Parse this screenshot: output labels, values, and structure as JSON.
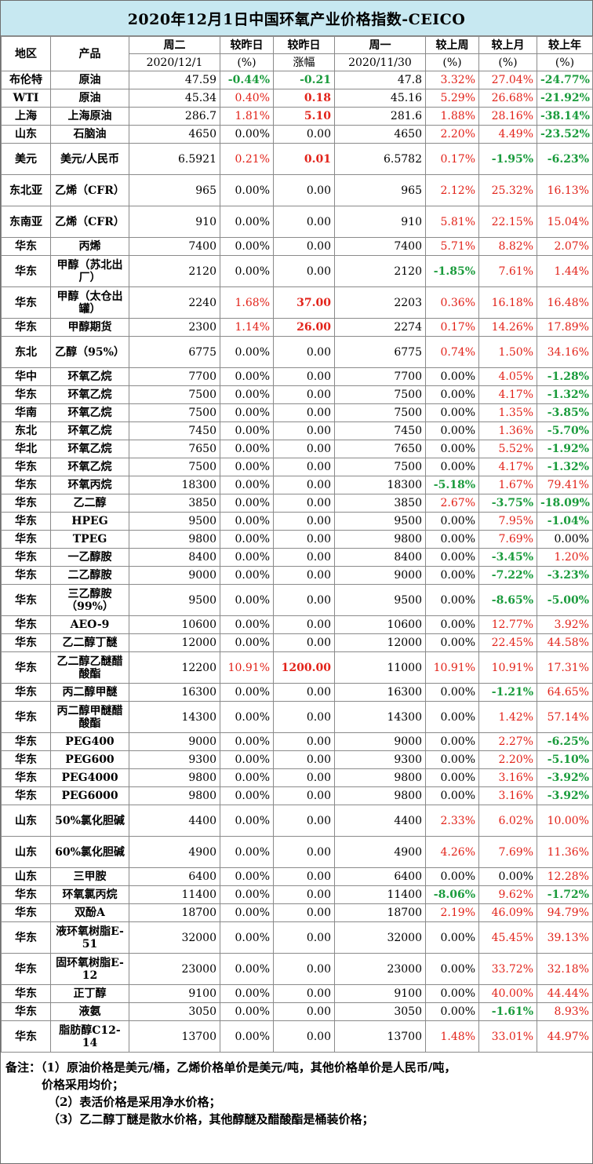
{
  "title": "2020年12月1日中国环氧产业价格指数-CEICO",
  "header": {
    "row1": [
      "地区",
      "产品",
      "周二",
      "较昨日",
      "较昨日",
      "周一",
      "较上周",
      "较上月",
      "较上年"
    ],
    "row2": [
      "2020/12/1",
      "(%)",
      "涨幅",
      "2020/11/30",
      "(%)",
      "(%)",
      "(%)"
    ]
  },
  "rows": [
    {
      "region": "布伦特",
      "product": "原油",
      "tue": "47.59",
      "dpct": "-0.44%",
      "dabs": "-0.21",
      "mon": "47.8",
      "week": "3.32%",
      "month": "27.04%",
      "year": "-24.77%"
    },
    {
      "region": "WTI",
      "product": "原油",
      "tue": "45.34",
      "dpct": "0.40%",
      "dabs": "0.18",
      "mon": "45.16",
      "week": "5.29%",
      "month": "26.68%",
      "year": "-21.92%"
    },
    {
      "region": "上海",
      "product": "上海原油",
      "tue": "286.7",
      "dpct": "1.81%",
      "dabs": "5.10",
      "mon": "281.6",
      "week": "1.88%",
      "month": "28.16%",
      "year": "-38.14%"
    },
    {
      "region": "山东",
      "product": "石脑油",
      "tue": "4650",
      "dpct": "0.00%",
      "dabs": "0.00",
      "mon": "4650",
      "week": "2.20%",
      "month": "4.49%",
      "year": "-23.52%"
    },
    {
      "region": "美元",
      "product": "美元/人民币",
      "tue": "6.5921",
      "dpct": "0.21%",
      "dabs": "0.01",
      "mon": "6.5782",
      "week": "0.17%",
      "month": "-1.95%",
      "year": "-6.23%",
      "tall": true
    },
    {
      "region": "东北亚",
      "product": "乙烯（CFR）",
      "tue": "965",
      "dpct": "0.00%",
      "dabs": "0.00",
      "mon": "965",
      "week": "2.12%",
      "month": "25.32%",
      "year": "16.13%",
      "tall": true
    },
    {
      "region": "东南亚",
      "product": "乙烯（CFR）",
      "tue": "910",
      "dpct": "0.00%",
      "dabs": "0.00",
      "mon": "910",
      "week": "5.81%",
      "month": "22.15%",
      "year": "15.04%",
      "tall": true
    },
    {
      "region": "华东",
      "product": "丙烯",
      "tue": "7400",
      "dpct": "0.00%",
      "dabs": "0.00",
      "mon": "7400",
      "week": "5.71%",
      "month": "8.82%",
      "year": "2.07%"
    },
    {
      "region": "华东",
      "product": "甲醇（苏北出厂）",
      "tue": "2120",
      "dpct": "0.00%",
      "dabs": "0.00",
      "mon": "2120",
      "week": "-1.85%",
      "month": "7.61%",
      "year": "1.44%",
      "tall": true
    },
    {
      "region": "华东",
      "product": "甲醇（太仓出罐）",
      "tue": "2240",
      "dpct": "1.68%",
      "dabs": "37.00",
      "mon": "2203",
      "week": "0.36%",
      "month": "16.18%",
      "year": "16.48%",
      "tall": true
    },
    {
      "region": "华东",
      "product": "甲醇期货",
      "tue": "2300",
      "dpct": "1.14%",
      "dabs": "26.00",
      "mon": "2274",
      "week": "0.17%",
      "month": "14.26%",
      "year": "17.89%"
    },
    {
      "region": "东北",
      "product": "乙醇（95%）",
      "tue": "6775",
      "dpct": "0.00%",
      "dabs": "0.00",
      "mon": "6775",
      "week": "0.74%",
      "month": "1.50%",
      "year": "34.16%",
      "tall": true
    },
    {
      "region": "华中",
      "product": "环氧乙烷",
      "tue": "7700",
      "dpct": "0.00%",
      "dabs": "0.00",
      "mon": "7700",
      "week": "0.00%",
      "month": "4.05%",
      "year": "-1.28%"
    },
    {
      "region": "华东",
      "product": "环氧乙烷",
      "tue": "7500",
      "dpct": "0.00%",
      "dabs": "0.00",
      "mon": "7500",
      "week": "0.00%",
      "month": "4.17%",
      "year": "-1.32%"
    },
    {
      "region": "华南",
      "product": "环氧乙烷",
      "tue": "7500",
      "dpct": "0.00%",
      "dabs": "0.00",
      "mon": "7500",
      "week": "0.00%",
      "month": "1.35%",
      "year": "-3.85%"
    },
    {
      "region": "东北",
      "product": "环氧乙烷",
      "tue": "7450",
      "dpct": "0.00%",
      "dabs": "0.00",
      "mon": "7450",
      "week": "0.00%",
      "month": "1.36%",
      "year": "-5.70%"
    },
    {
      "region": "华北",
      "product": "环氧乙烷",
      "tue": "7650",
      "dpct": "0.00%",
      "dabs": "0.00",
      "mon": "7650",
      "week": "0.00%",
      "month": "5.52%",
      "year": "-1.92%"
    },
    {
      "region": "华东",
      "product": "环氧乙烷",
      "tue": "7500",
      "dpct": "0.00%",
      "dabs": "0.00",
      "mon": "7500",
      "week": "0.00%",
      "month": "4.17%",
      "year": "-1.32%"
    },
    {
      "region": "华东",
      "product": "环氧丙烷",
      "tue": "18300",
      "dpct": "0.00%",
      "dabs": "0.00",
      "mon": "18300",
      "week": "-5.18%",
      "month": "1.67%",
      "year": "79.41%"
    },
    {
      "region": "华东",
      "product": "乙二醇",
      "tue": "3850",
      "dpct": "0.00%",
      "dabs": "0.00",
      "mon": "3850",
      "week": "2.67%",
      "month": "-3.75%",
      "year": "-18.09%"
    },
    {
      "region": "华东",
      "product": "HPEG",
      "tue": "9500",
      "dpct": "0.00%",
      "dabs": "0.00",
      "mon": "9500",
      "week": "0.00%",
      "month": "7.95%",
      "year": "-1.04%"
    },
    {
      "region": "华东",
      "product": "TPEG",
      "tue": "9800",
      "dpct": "0.00%",
      "dabs": "0.00",
      "mon": "9800",
      "week": "0.00%",
      "month": "7.69%",
      "year": "0.00%"
    },
    {
      "region": "华东",
      "product": "一乙醇胺",
      "tue": "8400",
      "dpct": "0.00%",
      "dabs": "0.00",
      "mon": "8400",
      "week": "0.00%",
      "month": "-3.45%",
      "year": "1.20%"
    },
    {
      "region": "华东",
      "product": "二乙醇胺",
      "tue": "9000",
      "dpct": "0.00%",
      "dabs": "0.00",
      "mon": "9000",
      "week": "0.00%",
      "month": "-7.22%",
      "year": "-3.23%"
    },
    {
      "region": "华东",
      "product": "三乙醇胺（99%）",
      "tue": "9500",
      "dpct": "0.00%",
      "dabs": "0.00",
      "mon": "9500",
      "week": "0.00%",
      "month": "-8.65%",
      "year": "-5.00%",
      "tall": true
    },
    {
      "region": "华东",
      "product": "AEO-9",
      "tue": "10600",
      "dpct": "0.00%",
      "dabs": "0.00",
      "mon": "10600",
      "week": "0.00%",
      "month": "12.77%",
      "year": "3.92%"
    },
    {
      "region": "华东",
      "product": "乙二醇丁醚",
      "tue": "12000",
      "dpct": "0.00%",
      "dabs": "0.00",
      "mon": "12000",
      "week": "0.00%",
      "month": "22.45%",
      "year": "44.58%"
    },
    {
      "region": "华东",
      "product": "乙二醇乙醚醋酸酯",
      "tue": "12200",
      "dpct": "10.91%",
      "dabs": "1200.00",
      "mon": "11000",
      "week": "10.91%",
      "month": "10.91%",
      "year": "17.31%",
      "tall": true
    },
    {
      "region": "华东",
      "product": "丙二醇甲醚",
      "tue": "16300",
      "dpct": "0.00%",
      "dabs": "0.00",
      "mon": "16300",
      "week": "0.00%",
      "month": "-1.21%",
      "year": "64.65%"
    },
    {
      "region": "华东",
      "product": "丙二醇甲醚醋酸酯",
      "tue": "14300",
      "dpct": "0.00%",
      "dabs": "0.00",
      "mon": "14300",
      "week": "0.00%",
      "month": "1.42%",
      "year": "57.14%",
      "tall": true
    },
    {
      "region": "华东",
      "product": "PEG400",
      "tue": "9000",
      "dpct": "0.00%",
      "dabs": "0.00",
      "mon": "9000",
      "week": "0.00%",
      "month": "2.27%",
      "year": "-6.25%"
    },
    {
      "region": "华东",
      "product": "PEG600",
      "tue": "9300",
      "dpct": "0.00%",
      "dabs": "0.00",
      "mon": "9300",
      "week": "0.00%",
      "month": "2.20%",
      "year": "-5.10%"
    },
    {
      "region": "华东",
      "product": "PEG4000",
      "tue": "9800",
      "dpct": "0.00%",
      "dabs": "0.00",
      "mon": "9800",
      "week": "0.00%",
      "month": "3.16%",
      "year": "-3.92%"
    },
    {
      "region": "华东",
      "product": "PEG6000",
      "tue": "9800",
      "dpct": "0.00%",
      "dabs": "0.00",
      "mon": "9800",
      "week": "0.00%",
      "month": "3.16%",
      "year": "-3.92%"
    },
    {
      "region": "山东",
      "product": "50%氯化胆碱",
      "tue": "4400",
      "dpct": "0.00%",
      "dabs": "0.00",
      "mon": "4400",
      "week": "2.33%",
      "month": "6.02%",
      "year": "10.00%",
      "tall": true
    },
    {
      "region": "山东",
      "product": "60%氯化胆碱",
      "tue": "4900",
      "dpct": "0.00%",
      "dabs": "0.00",
      "mon": "4900",
      "week": "4.26%",
      "month": "7.69%",
      "year": "11.36%",
      "tall": true
    },
    {
      "region": "山东",
      "product": "三甲胺",
      "tue": "6400",
      "dpct": "0.00%",
      "dabs": "0.00",
      "mon": "6400",
      "week": "0.00%",
      "month": "0.00%",
      "year": "12.28%"
    },
    {
      "region": "华东",
      "product": "环氧氯丙烷",
      "tue": "11400",
      "dpct": "0.00%",
      "dabs": "0.00",
      "mon": "11400",
      "week": "-8.06%",
      "month": "9.62%",
      "year": "-1.72%"
    },
    {
      "region": "华东",
      "product": "双酚A",
      "tue": "18700",
      "dpct": "0.00%",
      "dabs": "0.00",
      "mon": "18700",
      "week": "2.19%",
      "month": "46.09%",
      "year": "94.79%"
    },
    {
      "region": "华东",
      "product": "液环氧树脂E-51",
      "tue": "32000",
      "dpct": "0.00%",
      "dabs": "0.00",
      "mon": "32000",
      "week": "0.00%",
      "month": "45.45%",
      "year": "39.13%",
      "tall": true
    },
    {
      "region": "华东",
      "product": "固环氧树脂E-12",
      "tue": "23000",
      "dpct": "0.00%",
      "dabs": "0.00",
      "mon": "23000",
      "week": "0.00%",
      "month": "33.72%",
      "year": "32.18%",
      "tall": true
    },
    {
      "region": "华东",
      "product": "正丁醇",
      "tue": "9100",
      "dpct": "0.00%",
      "dabs": "0.00",
      "mon": "9100",
      "week": "0.00%",
      "month": "40.00%",
      "year": "44.44%"
    },
    {
      "region": "华东",
      "product": "液氨",
      "tue": "3050",
      "dpct": "0.00%",
      "dabs": "0.00",
      "mon": "3050",
      "week": "0.00%",
      "month": "-1.61%",
      "year": "8.93%"
    },
    {
      "region": "华东",
      "product": "脂肪醇C12-14",
      "tue": "13700",
      "dpct": "0.00%",
      "dabs": "0.00",
      "mon": "13700",
      "week": "1.48%",
      "month": "33.01%",
      "year": "44.97%",
      "tall": true
    }
  ],
  "notes": [
    "备注：（1）原油价格是美元/桶，乙烯价格单价是美元/吨，其他价格单价是人民币/吨，",
    "价格采用均价；",
    "（2）表活价格是采用净水价格；",
    "（3）乙二醇丁醚是散水价格，其他醇醚及醋酸酯是桶装价格；"
  ]
}
